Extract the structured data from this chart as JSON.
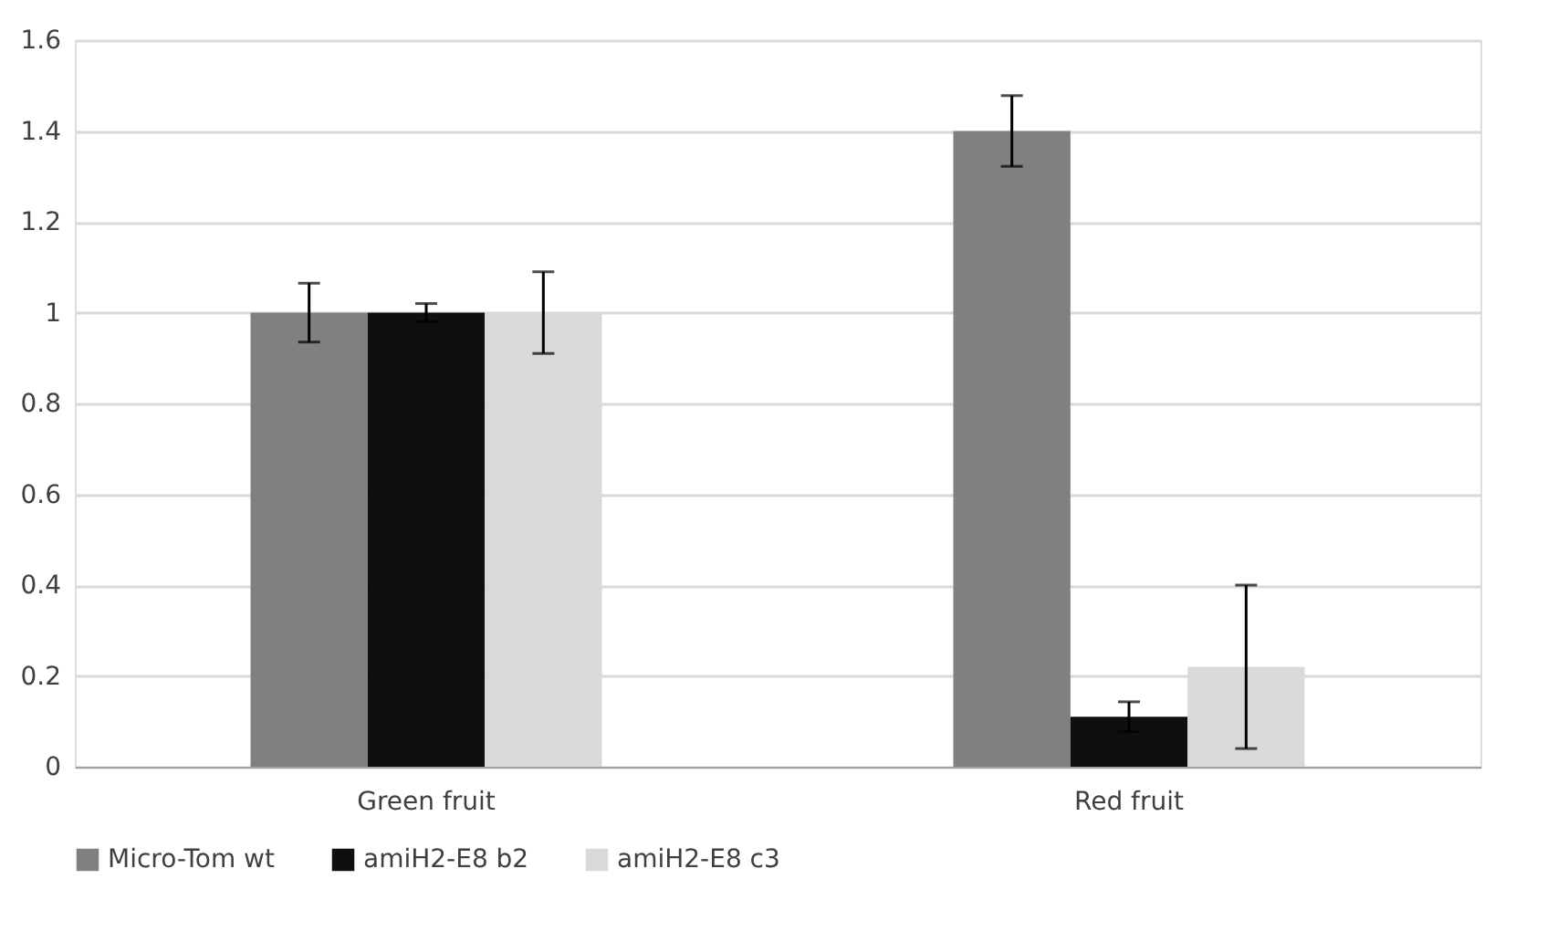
{
  "chart_data": {
    "type": "bar",
    "categories": [
      "Green fruit",
      "Red fruit"
    ],
    "series": [
      {
        "name": "Micro-Tom wt",
        "color": "#808080",
        "values": [
          1,
          1.4
        ],
        "errors": [
          0.065,
          0.078
        ]
      },
      {
        "name": "amiH2-E8 b2",
        "color": "#0f0f0f",
        "values": [
          1,
          0.11
        ],
        "errors": [
          0.02,
          0.033
        ]
      },
      {
        "name": "amiH2-E8 c3",
        "color": "#d9d9d9",
        "values": [
          1,
          0.22
        ],
        "errors": [
          0.09,
          0.18
        ]
      }
    ],
    "ylim": [
      0,
      1.6
    ],
    "yticks": [
      0,
      0.2,
      0.4,
      0.6,
      0.8,
      1,
      1.2,
      1.4,
      1.6
    ],
    "grid": "y",
    "legend": "bottom"
  }
}
